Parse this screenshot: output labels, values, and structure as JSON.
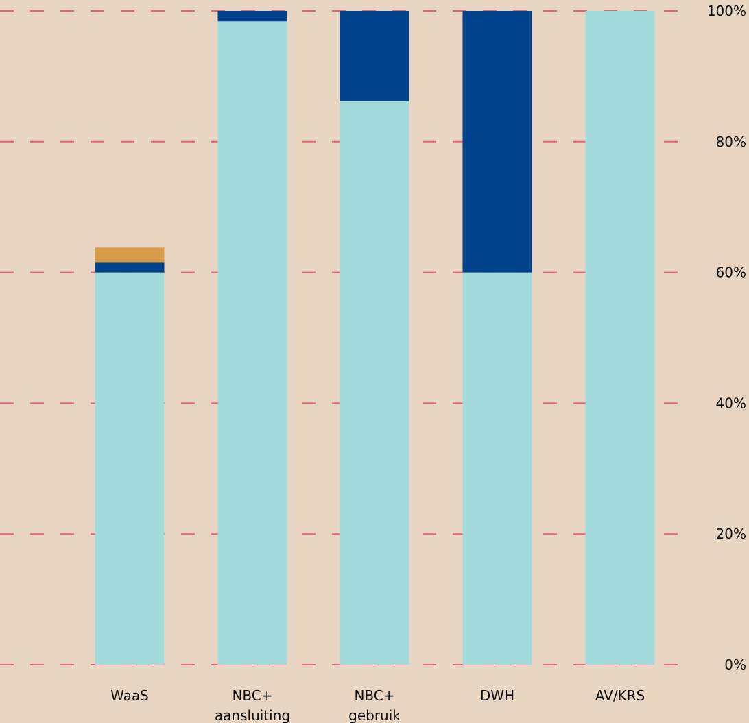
{
  "chart_data": {
    "type": "bar",
    "stacked": true,
    "categories": [
      "WaaS",
      "NBC+\naansluiting",
      "NBC+\ngebruik",
      "DWH",
      "AV/KRS"
    ],
    "series": [
      {
        "color": "#a3dbdc",
        "values": [
          60,
          98.4,
          86.2,
          60,
          100
        ]
      },
      {
        "color": "#00428c",
        "values": [
          1.5,
          1.6,
          13.8,
          40,
          0
        ]
      },
      {
        "color": "#d79b4c",
        "values": [
          2.3,
          0,
          0,
          0,
          0
        ]
      }
    ],
    "ylim": [
      0,
      100
    ],
    "yticks": [
      0,
      20,
      40,
      60,
      80,
      100
    ],
    "ytick_labels": [
      "0%",
      "20%",
      "40%",
      "60%",
      "80%",
      "100%"
    ],
    "grid": true,
    "grid_color": "#e5607a",
    "background": "#e8d6c2",
    "axis_side": "right"
  }
}
